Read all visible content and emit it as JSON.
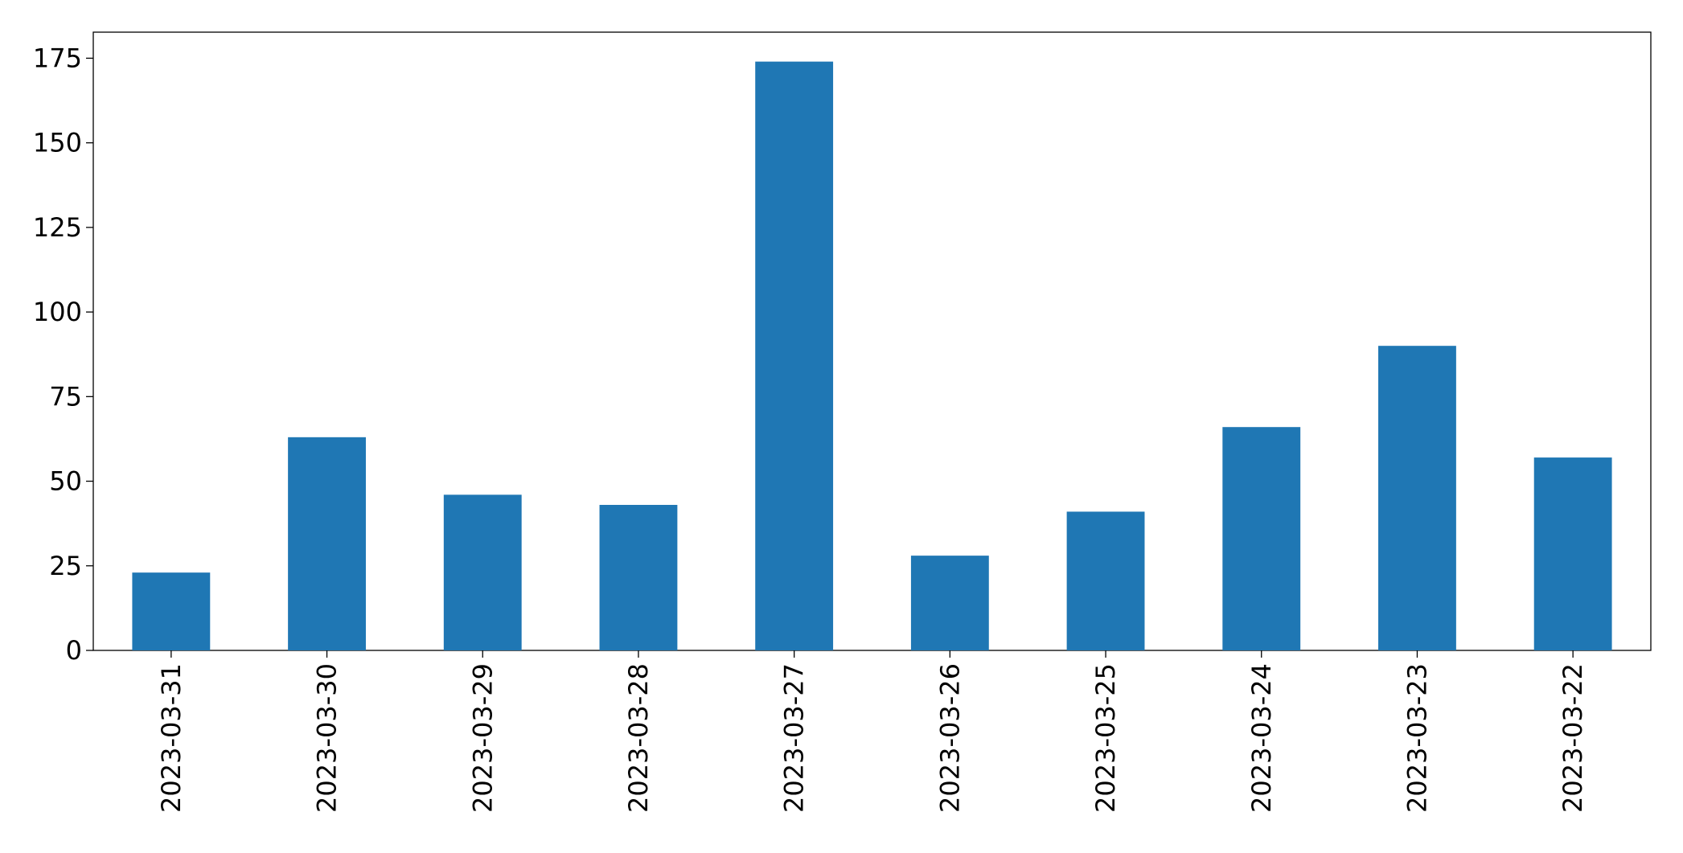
{
  "chart_data": {
    "type": "bar",
    "categories": [
      "2023-03-31",
      "2023-03-30",
      "2023-03-29",
      "2023-03-28",
      "2023-03-27",
      "2023-03-26",
      "2023-03-25",
      "2023-03-24",
      "2023-03-23",
      "2023-03-22"
    ],
    "values": [
      23,
      63,
      46,
      43,
      174,
      28,
      41,
      66,
      90,
      57
    ],
    "color": "#1f77b4",
    "ylim": [
      0,
      182.7
    ],
    "yticks": [
      0,
      25,
      50,
      75,
      100,
      125,
      150,
      175
    ],
    "grid": false
  }
}
